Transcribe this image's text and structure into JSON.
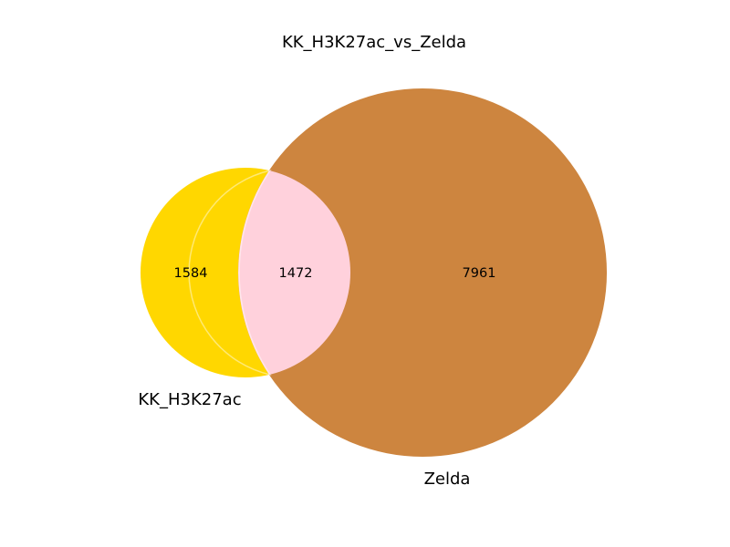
{
  "title": "KK_H3K27ac_vs_Zelda",
  "sets": [
    {
      "id": "a",
      "label": "KK_H3K27ac",
      "size": 3056,
      "color": "#ffd700"
    },
    {
      "id": "b",
      "label": "Zelda",
      "size": 9433,
      "color": "#cd853f"
    }
  ],
  "regions": {
    "a_only": "1584",
    "intersection": "1472",
    "b_only": "7961"
  },
  "intersection_color": "#ffd1dc"
}
